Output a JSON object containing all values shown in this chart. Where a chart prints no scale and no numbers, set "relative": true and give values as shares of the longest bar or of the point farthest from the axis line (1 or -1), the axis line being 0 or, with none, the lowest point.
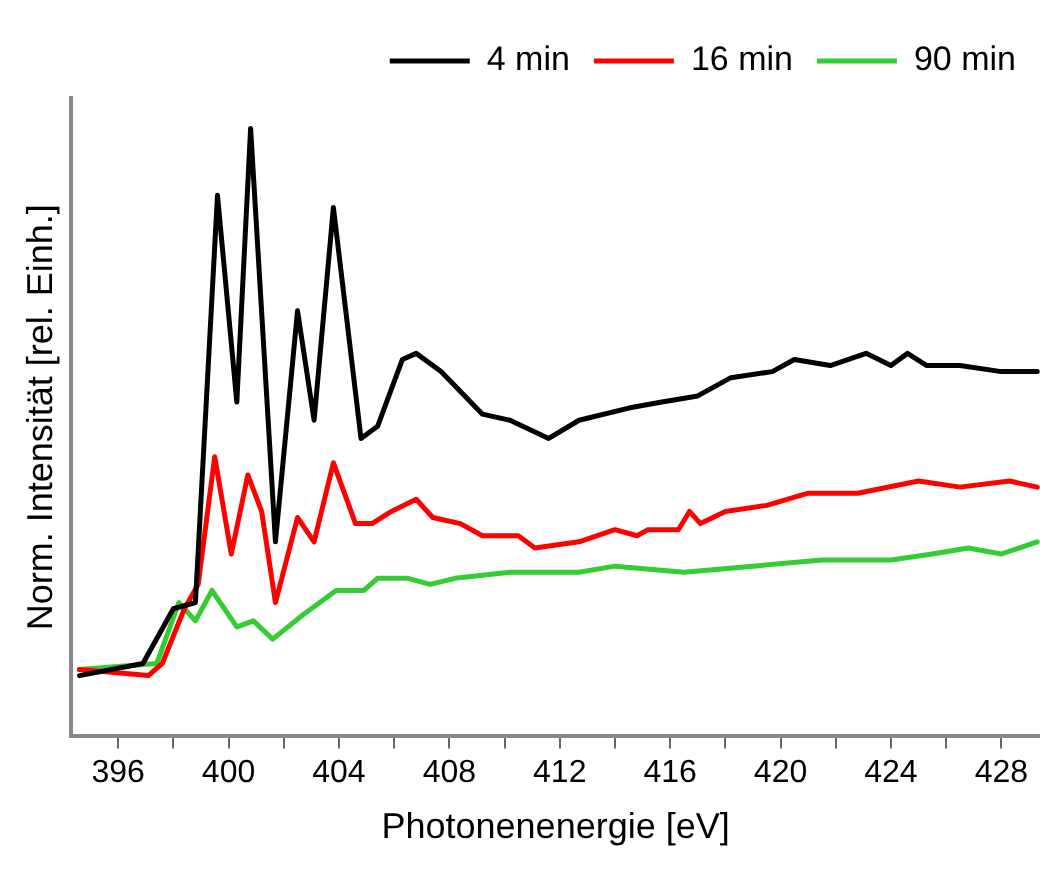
{
  "chart_data": {
    "type": "line",
    "xlabel": "Photonenenergie [eV]",
    "ylabel": "Norm. Intensität [rel. Einh.]",
    "relative": true,
    "xlim": [
      394.3,
      429.4
    ],
    "xticks": [
      396,
      {
        "value": 398,
        "label": null
      },
      400,
      {
        "value": 402,
        "label": null
      },
      404,
      {
        "value": 406,
        "label": null
      },
      408,
      {
        "value": 410,
        "label": null
      },
      412,
      {
        "value": 414,
        "label": null
      },
      416,
      {
        "value": 418,
        "label": null
      },
      420,
      {
        "value": 422,
        "label": null
      },
      424,
      {
        "value": 426,
        "label": null
      },
      428
    ],
    "tick_labels": "x",
    "legend": "top right",
    "grid": false,
    "marker": "none",
    "line_style": "solid",
    "series": [
      {
        "name": "4 min",
        "color": "#000000",
        "x": [
          394.6,
          396.9,
          398.0,
          398.8,
          399.6,
          400.3,
          400.8,
          401.7,
          402.5,
          403.1,
          403.8,
          404.8,
          405.4,
          406.3,
          406.8,
          407.7,
          409.2,
          410.2,
          411.6,
          412.7,
          414.5,
          415.7,
          417.0,
          418.2,
          419.7,
          420.5,
          421.8,
          423.1,
          424.0,
          424.6,
          425.3,
          426.5,
          428.0,
          429.3
        ],
        "values": [
          0.1,
          0.12,
          0.21,
          0.22,
          0.89,
          0.55,
          1,
          0.32,
          0.7,
          0.52,
          0.87,
          0.49,
          0.51,
          0.62,
          0.63,
          0.6,
          0.53,
          0.52,
          0.49,
          0.52,
          0.54,
          0.55,
          0.56,
          0.59,
          0.6,
          0.62,
          0.61,
          0.63,
          0.61,
          0.63,
          0.61,
          0.61,
          0.6,
          0.6
        ]
      },
      {
        "name": "16 min",
        "color": "#ff0000",
        "x": [
          394.6,
          397.1,
          397.6,
          398.4,
          398.9,
          399.5,
          400.1,
          400.7,
          401.2,
          401.7,
          402.5,
          403.1,
          403.8,
          404.6,
          405.2,
          405.9,
          406.8,
          407.4,
          408.4,
          409.2,
          409.9,
          410.5,
          411.1,
          412.7,
          414.0,
          414.8,
          415.2,
          416.3,
          416.7,
          417.1,
          418.0,
          419.5,
          421.0,
          422.8,
          425.0,
          426.5,
          428.3,
          429.3
        ],
        "values": [
          0.11,
          0.1,
          0.12,
          0.21,
          0.25,
          0.46,
          0.3,
          0.43,
          0.37,
          0.22,
          0.36,
          0.32,
          0.45,
          0.35,
          0.35,
          0.37,
          0.39,
          0.36,
          0.35,
          0.33,
          0.33,
          0.33,
          0.31,
          0.32,
          0.34,
          0.33,
          0.34,
          0.34,
          0.37,
          0.35,
          0.37,
          0.38,
          0.4,
          0.4,
          0.42,
          0.41,
          0.42,
          0.41
        ]
      },
      {
        "name": "90 min",
        "color": "#33cc33",
        "x": [
          394.6,
          397.4,
          398.2,
          398.8,
          399.4,
          400.3,
          400.9,
          401.6,
          402.7,
          403.9,
          404.9,
          405.4,
          406.1,
          406.5,
          407.3,
          408.2,
          410.2,
          412.7,
          414.0,
          416.5,
          419.0,
          421.5,
          424.0,
          425.5,
          426.8,
          428.0,
          429.3
        ],
        "values": [
          0.11,
          0.12,
          0.22,
          0.19,
          0.24,
          0.18,
          0.19,
          0.16,
          0.2,
          0.24,
          0.24,
          0.26,
          0.26,
          0.26,
          0.25,
          0.26,
          0.27,
          0.27,
          0.28,
          0.27,
          0.28,
          0.29,
          0.29,
          0.3,
          0.31,
          0.3,
          0.32
        ]
      }
    ]
  }
}
